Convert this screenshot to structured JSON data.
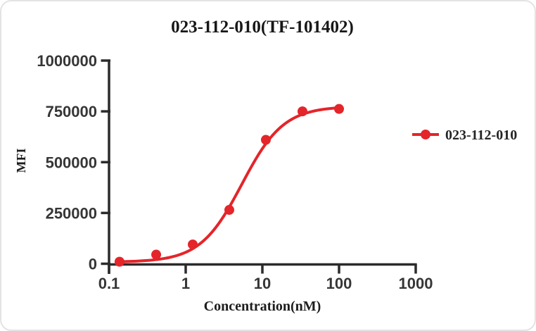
{
  "chart_data": {
    "type": "line",
    "title": "023-112-010(TF-101402)",
    "xlabel": "Concentration(nM)",
    "ylabel": "MFI",
    "x_scale": "log",
    "grid": false,
    "legend_position": "right",
    "xlim": [
      0.1,
      1000
    ],
    "ylim": [
      0,
      1000000
    ],
    "x_tick_values": [
      0.1,
      1,
      10,
      100,
      1000
    ],
    "x_tick_labels": [
      "0.1",
      "1",
      "10",
      "100",
      "1000"
    ],
    "y_tick_values": [
      0,
      250000,
      500000,
      750000,
      1000000
    ],
    "y_tick_labels": [
      "0",
      "250000",
      "500000",
      "750000",
      "1000000"
    ],
    "series": [
      {
        "name": "023-112-010",
        "color": "#e4252a",
        "marker": "circle",
        "x": [
          0.137,
          0.412,
          1.235,
          3.704,
          11.11,
          33.33,
          100
        ],
        "y": [
          10000,
          45000,
          95000,
          265000,
          610000,
          750000,
          762000
        ],
        "fit_curve": {
          "model": "4PL",
          "bottom": 8000,
          "top": 775000,
          "ec50": 5.4,
          "hill": 1.6
        }
      }
    ]
  }
}
